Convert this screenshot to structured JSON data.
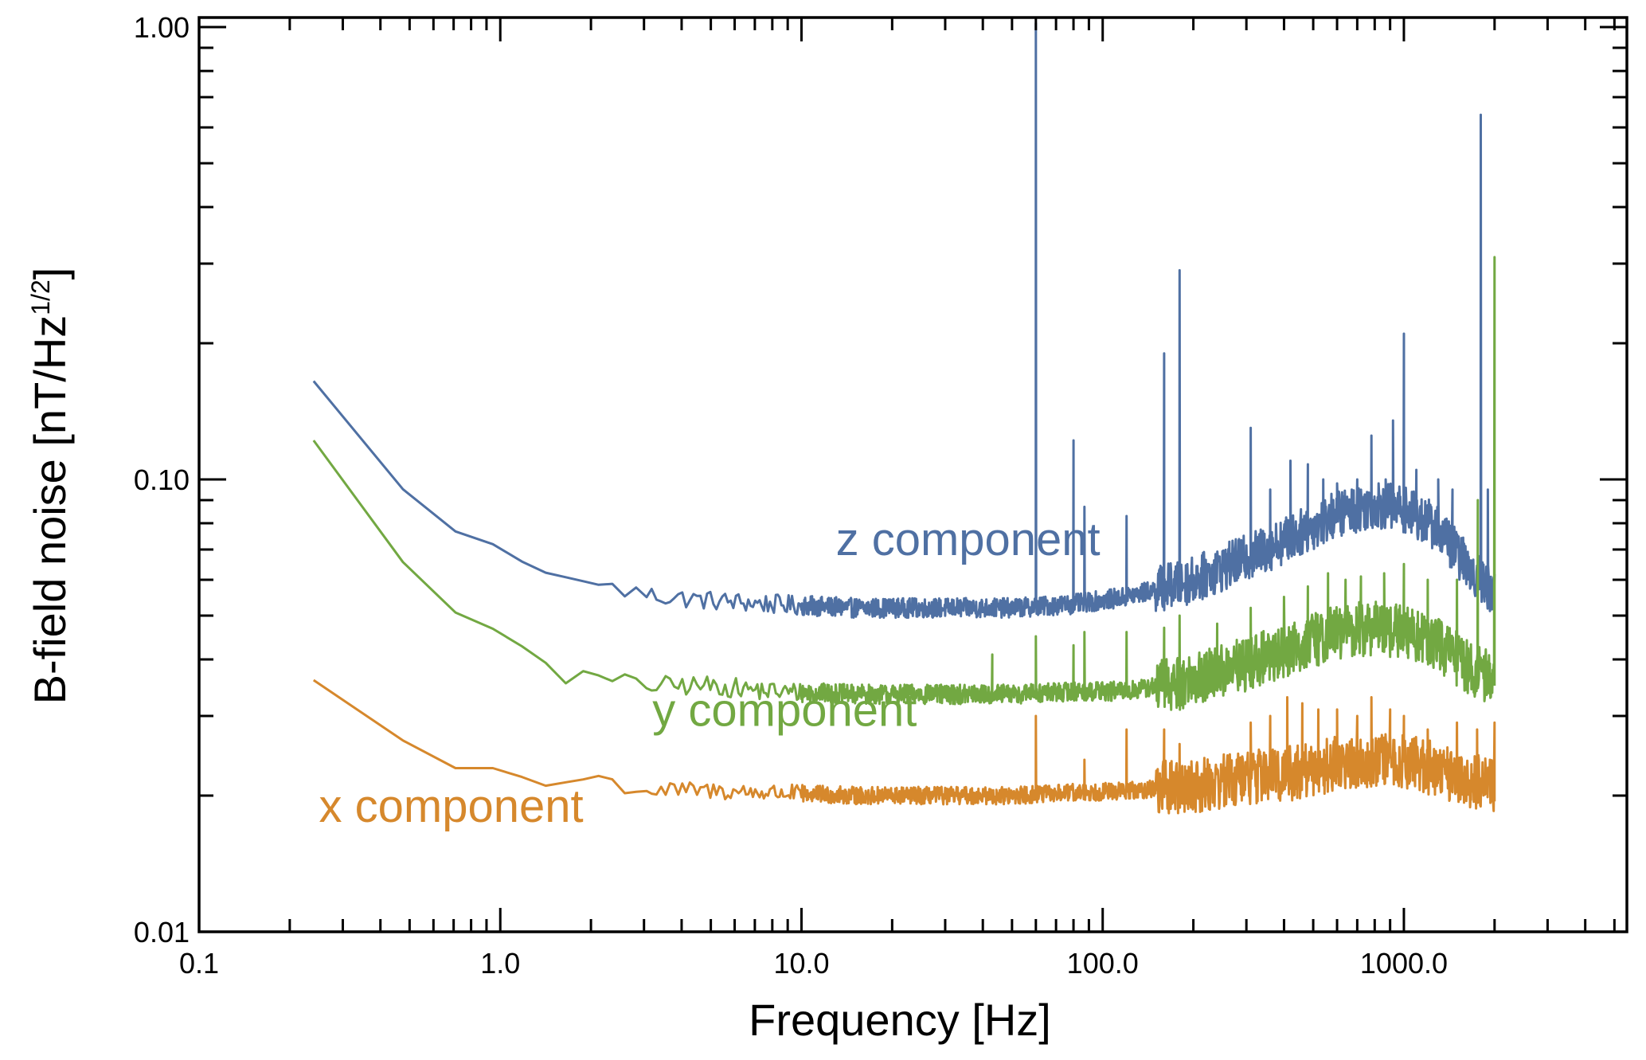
{
  "chart_data": {
    "type": "line",
    "title": "",
    "xlabel": "Frequency [Hz]",
    "ylabel_main": "B-field noise [nT/Hz",
    "ylabel_sup": "1/2",
    "ylabel_close": "]",
    "xscale": "log",
    "yscale": "log",
    "xlim": [
      0.1,
      5500
    ],
    "ylim": [
      0.01,
      1.05
    ],
    "xticks": [
      {
        "value": 0.1,
        "label": "0.1"
      },
      {
        "value": 1,
        "label": "1.0"
      },
      {
        "value": 10,
        "label": "10.0"
      },
      {
        "value": 100,
        "label": "100.0"
      },
      {
        "value": 1000,
        "label": "1000.0"
      }
    ],
    "yticks": [
      {
        "value": 0.01,
        "label": "0.01"
      },
      {
        "value": 0.1,
        "label": "0.10"
      },
      {
        "value": 1.0,
        "label": "1.00"
      }
    ],
    "grid": false,
    "series": [
      {
        "name": "z component",
        "label": "z component",
        "color": "#4f70a3",
        "label_position": {
          "x": 13,
          "y": 0.068
        },
        "baseline": [
          [
            0.24,
            0.165
          ],
          [
            0.3,
            0.13
          ],
          [
            0.45,
            0.098
          ],
          [
            0.7,
            0.077
          ],
          [
            1.0,
            0.071
          ],
          [
            1.3,
            0.063
          ],
          [
            1.8,
            0.06
          ],
          [
            2.5,
            0.057
          ],
          [
            3.5,
            0.055
          ],
          [
            5,
            0.054
          ],
          [
            8,
            0.053
          ],
          [
            15,
            0.052
          ],
          [
            30,
            0.052
          ],
          [
            50,
            0.052
          ],
          [
            80,
            0.053
          ],
          [
            120,
            0.055
          ],
          [
            200,
            0.06
          ],
          [
            300,
            0.067
          ],
          [
            450,
            0.076
          ],
          [
            600,
            0.084
          ],
          [
            800,
            0.088
          ],
          [
            1000,
            0.086
          ],
          [
            1300,
            0.078
          ],
          [
            1600,
            0.065
          ],
          [
            2000,
            0.056
          ]
        ],
        "noise": 0.05,
        "noise_start": 2.2,
        "noise_hf": 0.12,
        "spikes": [
          [
            60,
            1.02
          ],
          [
            80,
            0.122
          ],
          [
            87,
            0.087
          ],
          [
            120,
            0.083
          ],
          [
            160,
            0.19
          ],
          [
            180,
            0.29
          ],
          [
            240,
            0.065
          ],
          [
            310,
            0.13
          ],
          [
            360,
            0.095
          ],
          [
            420,
            0.11
          ],
          [
            480,
            0.108
          ],
          [
            540,
            0.1
          ],
          [
            600,
            0.098
          ],
          [
            700,
            0.1
          ],
          [
            780,
            0.125
          ],
          [
            870,
            0.1
          ],
          [
            920,
            0.135
          ],
          [
            1000,
            0.21
          ],
          [
            1100,
            0.105
          ],
          [
            1300,
            0.1
          ],
          [
            1450,
            0.095
          ],
          [
            1800,
            0.64
          ],
          [
            1900,
            0.095
          ]
        ]
      },
      {
        "name": "y component",
        "label": "y component",
        "color": "#72a842",
        "label_position": {
          "x": 3.2,
          "y": 0.0285
        },
        "baseline": [
          [
            0.24,
            0.122
          ],
          [
            0.3,
            0.095
          ],
          [
            0.45,
            0.068
          ],
          [
            0.7,
            0.051
          ],
          [
            1.0,
            0.046
          ],
          [
            1.3,
            0.041
          ],
          [
            1.6,
            0.037
          ],
          [
            2.2,
            0.036
          ],
          [
            3,
            0.035
          ],
          [
            5,
            0.035
          ],
          [
            8,
            0.034
          ],
          [
            15,
            0.0335
          ],
          [
            30,
            0.0335
          ],
          [
            50,
            0.0335
          ],
          [
            80,
            0.034
          ],
          [
            120,
            0.034
          ],
          [
            200,
            0.036
          ],
          [
            300,
            0.039
          ],
          [
            450,
            0.043
          ],
          [
            600,
            0.046
          ],
          [
            800,
            0.047
          ],
          [
            1000,
            0.046
          ],
          [
            1300,
            0.043
          ],
          [
            1600,
            0.039
          ],
          [
            2000,
            0.036
          ]
        ],
        "noise": 0.05,
        "noise_start": 1.6,
        "noise_hf": 0.14,
        "spikes": [
          [
            43,
            0.041
          ],
          [
            60,
            0.045
          ],
          [
            80,
            0.043
          ],
          [
            87,
            0.046
          ],
          [
            120,
            0.046
          ],
          [
            160,
            0.047
          ],
          [
            180,
            0.05
          ],
          [
            240,
            0.048
          ],
          [
            310,
            0.052
          ],
          [
            400,
            0.055
          ],
          [
            480,
            0.058
          ],
          [
            560,
            0.062
          ],
          [
            640,
            0.06
          ],
          [
            720,
            0.061
          ],
          [
            860,
            0.062
          ],
          [
            1000,
            0.065
          ],
          [
            1200,
            0.06
          ],
          [
            1500,
            0.06
          ],
          [
            1760,
            0.09
          ],
          [
            2000,
            0.31
          ]
        ]
      },
      {
        "name": "x component",
        "label": "x component",
        "color": "#d6882c",
        "label_position": {
          "x": 0.25,
          "y": 0.0175
        },
        "baseline": [
          [
            0.24,
            0.036
          ],
          [
            0.3,
            0.032
          ],
          [
            0.45,
            0.027
          ],
          [
            0.7,
            0.023
          ],
          [
            1.0,
            0.023
          ],
          [
            1.4,
            0.021
          ],
          [
            2,
            0.022
          ],
          [
            3,
            0.0205
          ],
          [
            5,
            0.0205
          ],
          [
            8,
            0.0203
          ],
          [
            15,
            0.02
          ],
          [
            30,
            0.02
          ],
          [
            50,
            0.02
          ],
          [
            80,
            0.0203
          ],
          [
            120,
            0.0205
          ],
          [
            200,
            0.021
          ],
          [
            300,
            0.022
          ],
          [
            450,
            0.0225
          ],
          [
            600,
            0.0235
          ],
          [
            800,
            0.024
          ],
          [
            1000,
            0.0238
          ],
          [
            1300,
            0.0228
          ],
          [
            1600,
            0.0218
          ],
          [
            2000,
            0.021
          ]
        ],
        "noise": 0.045,
        "noise_start": 1.6,
        "noise_hf": 0.14,
        "spikes": [
          [
            60,
            0.03
          ],
          [
            87,
            0.024
          ],
          [
            120,
            0.028
          ],
          [
            160,
            0.028
          ],
          [
            180,
            0.026
          ],
          [
            310,
            0.029
          ],
          [
            360,
            0.03
          ],
          [
            410,
            0.033
          ],
          [
            460,
            0.032
          ],
          [
            520,
            0.031
          ],
          [
            600,
            0.031
          ],
          [
            700,
            0.03
          ],
          [
            780,
            0.033
          ],
          [
            900,
            0.031
          ],
          [
            1000,
            0.03
          ],
          [
            1200,
            0.028
          ],
          [
            1500,
            0.029
          ],
          [
            1750,
            0.028
          ],
          [
            2000,
            0.029
          ]
        ]
      }
    ]
  }
}
